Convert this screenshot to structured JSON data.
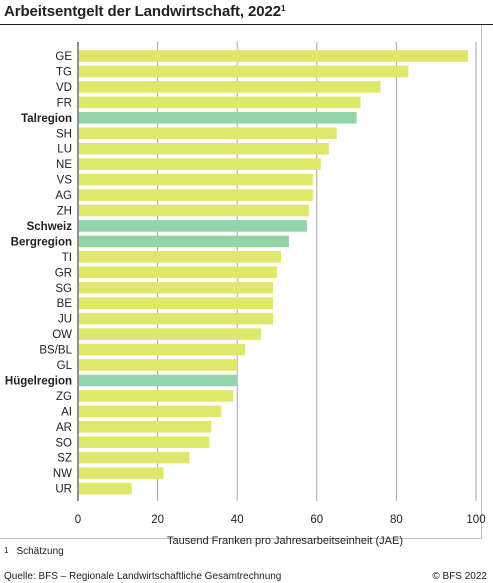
{
  "title": "Arbeitsentgelt der Landwirtschaft, 2022",
  "title_note": "1",
  "footnote": {
    "mark": "1",
    "text": "Schätzung"
  },
  "source": "Quelle: BFS – Regionale Landwirtschaftliche Gesamtrechnung",
  "copyright": "© BFS 2022",
  "colors": {
    "canton": "#dfe86a",
    "region": "#93d4a8",
    "grid": "#a6a6a6"
  },
  "chart_data": {
    "type": "bar",
    "orientation": "horizontal",
    "title": "Arbeitsentgelt der Landwirtschaft, 2022",
    "xlabel": "Tausend Franken pro Jahresarbeitseinheit (JAE)",
    "ylabel": "",
    "xlim": [
      0,
      100
    ],
    "xticks": [
      0,
      20,
      40,
      60,
      80,
      100
    ],
    "grid": "vertical",
    "categories": [
      "GE",
      "TG",
      "VD",
      "FR",
      "Talregion",
      "SH",
      "LU",
      "NE",
      "VS",
      "AG",
      "ZH",
      "Schweiz",
      "Bergregion",
      "TI",
      "GR",
      "SG",
      "BE",
      "JU",
      "OW",
      "BS/BL",
      "GL",
      "Hügelregion",
      "ZG",
      "AI",
      "AR",
      "SO",
      "SZ",
      "NW",
      "UR"
    ],
    "values": [
      98,
      83,
      76,
      71,
      70,
      65,
      63,
      61,
      59,
      59,
      58,
      57.5,
      53,
      51,
      50,
      49,
      49,
      49,
      46,
      42,
      40,
      40,
      39,
      36,
      33.5,
      33,
      28,
      21.5,
      13.5
    ],
    "highlighted": [
      "Talregion",
      "Schweiz",
      "Bergregion",
      "Hügelregion"
    ]
  }
}
